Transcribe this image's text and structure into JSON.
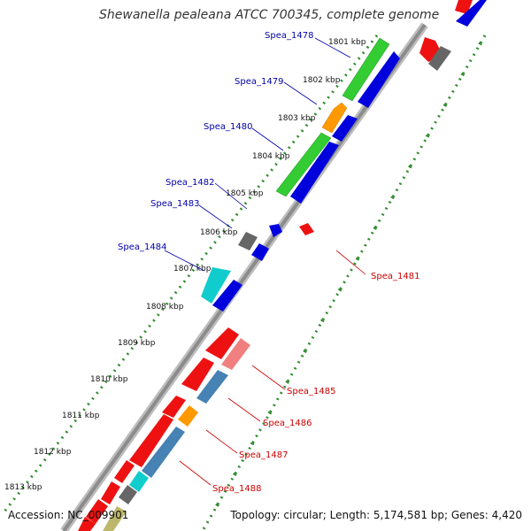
{
  "title": "Shewanella pealeana ATCC 700345, complete genome",
  "footer": {
    "accession": "Accession: NC_009901",
    "summary": "Topology: circular; Length: 5,174,581 bp; Genes: 4,420"
  },
  "colors": {
    "axis": "#8c8c8c",
    "tick": "#2e8b2e",
    "label_top_strand": "#0000aa",
    "label_bottom_strand": "#cc0000"
  },
  "kbp_labels": [
    "1801 kbp",
    "1802 kbp",
    "1803 kbp",
    "1804 kbp",
    "1805 kbp",
    "1806 kbp",
    "1807 kbp",
    "1808 kbp",
    "1809 kbp",
    "1810 kbp",
    "1811 kbp",
    "1812 kbp",
    "1813 kbp"
  ],
  "gene_labels": {
    "spea_1478": "Spea_1478",
    "spea_1479": "Spea_1479",
    "spea_1480": "Spea_1480",
    "spea_1481": "Spea_1481",
    "spea_1482": "Spea_1482",
    "spea_1483": "Spea_1483",
    "spea_1484": "Spea_1484",
    "spea_1485": "Spea_1485",
    "spea_1486": "Spea_1486",
    "spea_1487": "Spea_1487",
    "spea_1488": "Spea_1488"
  },
  "gene_colors": {
    "green": "#33cc33",
    "blue": "#0000dd",
    "orange": "#ff9900",
    "red": "#ee1111",
    "pink": "#f08080",
    "steel": "#4682b4",
    "gray": "#666666",
    "cyan": "#11cccc",
    "olive": "#bdb76b"
  }
}
